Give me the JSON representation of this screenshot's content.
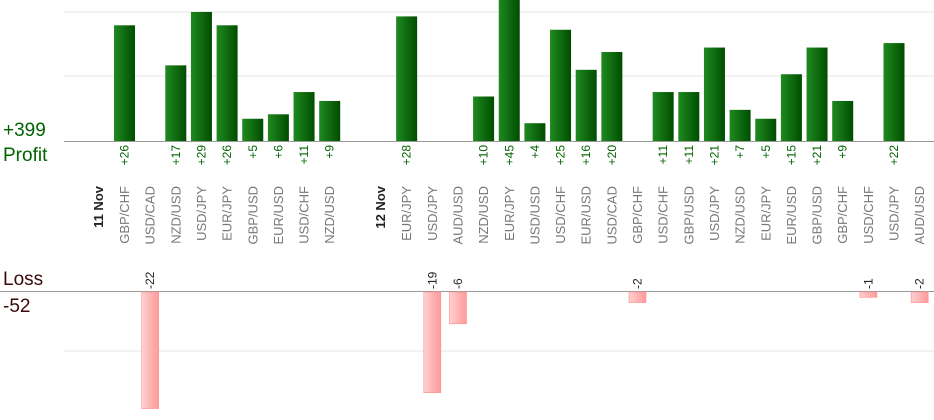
{
  "summary": {
    "profit_total": "+399",
    "profit_label": "Profit",
    "loss_label": "Loss",
    "loss_total": "-52"
  },
  "colors": {
    "profit_bar": "#0a6a0a",
    "profit_text": "#006400",
    "loss_bar": "#ffb6b6",
    "loss_text": "#222222",
    "grid": "#e6e6e6",
    "axis": "#999999"
  },
  "chart_data": {
    "type": "bar",
    "days": [
      {
        "label": "11 Nov",
        "pairs": [
          {
            "pair": "GBP/CHF",
            "profit": 26,
            "loss": null
          },
          {
            "pair": "USD/CAD",
            "profit": null,
            "loss": -22
          },
          {
            "pair": "NZD/USD",
            "profit": 17,
            "loss": null
          },
          {
            "pair": "USD/JPY",
            "profit": 29,
            "loss": null
          },
          {
            "pair": "EUR/JPY",
            "profit": 26,
            "loss": null
          },
          {
            "pair": "GBP/USD",
            "profit": 5,
            "loss": null
          },
          {
            "pair": "EUR/USD",
            "profit": 6,
            "loss": null
          },
          {
            "pair": "USD/CHF",
            "profit": 11,
            "loss": null
          },
          {
            "pair": "NZD/USD",
            "profit": 9,
            "loss": null
          }
        ]
      },
      {
        "label": "12 Nov",
        "pairs": [
          {
            "pair": "EUR/JPY",
            "profit": 28,
            "loss": null
          },
          {
            "pair": "USD/JPY",
            "profit": null,
            "loss": -19
          },
          {
            "pair": "AUD/USD",
            "profit": null,
            "loss": -6
          },
          {
            "pair": "NZD/USD",
            "profit": 10,
            "loss": null
          },
          {
            "pair": "EUR/JPY",
            "profit": 45,
            "loss": null
          },
          {
            "pair": "USD/USD",
            "profit": 4,
            "loss": null
          },
          {
            "pair": "USD/CHF",
            "profit": 25,
            "loss": null
          },
          {
            "pair": "EUR/USD",
            "profit": 16,
            "loss": null
          },
          {
            "pair": "USD/CAD",
            "profit": 20,
            "loss": null
          },
          {
            "pair": "GBP/CHF",
            "profit": null,
            "loss": -2
          },
          {
            "pair": "USD/CHF",
            "profit": 11,
            "loss": null
          },
          {
            "pair": "GBP/USD",
            "profit": 11,
            "loss": null
          },
          {
            "pair": "USD/JPY",
            "profit": 21,
            "loss": null
          },
          {
            "pair": "NZD/USD",
            "profit": 7,
            "loss": null
          },
          {
            "pair": "EUR/JPY",
            "profit": 5,
            "loss": null
          },
          {
            "pair": "EUR/USD",
            "profit": 15,
            "loss": null
          },
          {
            "pair": "GBP/USD",
            "profit": 21,
            "loss": null
          },
          {
            "pair": "GBP/CHF",
            "profit": 9,
            "loss": null
          },
          {
            "pair": "USD/CHF",
            "profit": null,
            "loss": -1
          },
          {
            "pair": "USD/JPY",
            "profit": 22,
            "loss": null
          },
          {
            "pair": "AUD/USD",
            "profit": null,
            "loss": -2
          }
        ]
      }
    ]
  }
}
